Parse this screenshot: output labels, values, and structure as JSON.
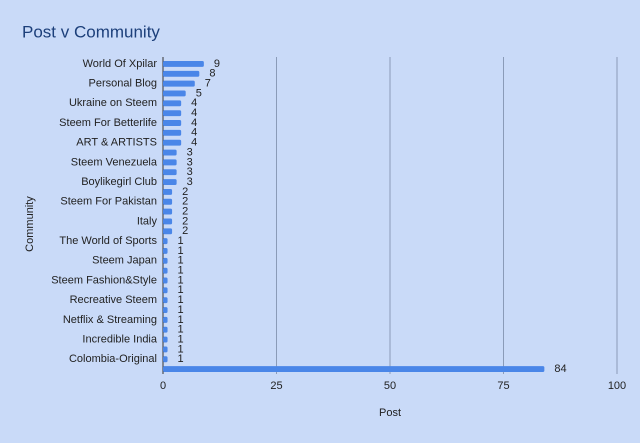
{
  "chart_data": {
    "type": "bar",
    "orientation": "horizontal",
    "title": "Post v Community",
    "x_label": "Post",
    "y_label": "Community",
    "categories": [
      "World Of Xpilar",
      null,
      "Personal Blog",
      null,
      "Ukraine on Steem",
      null,
      "Steem For Betterlife",
      null,
      "ART & ARTISTS",
      null,
      "Steem Venezuela",
      null,
      "Boylikegirl Club",
      null,
      "Steem For Pakistan",
      null,
      "Italy",
      null,
      "The World of Sports",
      null,
      "Steem Japan",
      null,
      "Steem Fashion&Style",
      null,
      "Recreative Steem",
      null,
      "Netflix & Streaming",
      null,
      "Incredible India",
      null,
      "Colombia-Original",
      null
    ],
    "values": [
      9,
      8,
      7,
      5,
      4,
      4,
      4,
      4,
      4,
      3,
      3,
      3,
      3,
      2,
      2,
      2,
      2,
      2,
      1,
      1,
      1,
      1,
      1,
      1,
      1,
      1,
      1,
      1,
      1,
      1,
      1,
      84
    ],
    "color": "#4a86e8",
    "xlim": [
      0,
      100
    ],
    "xticks": [
      0,
      25,
      50,
      75,
      100
    ],
    "grid": true
  }
}
